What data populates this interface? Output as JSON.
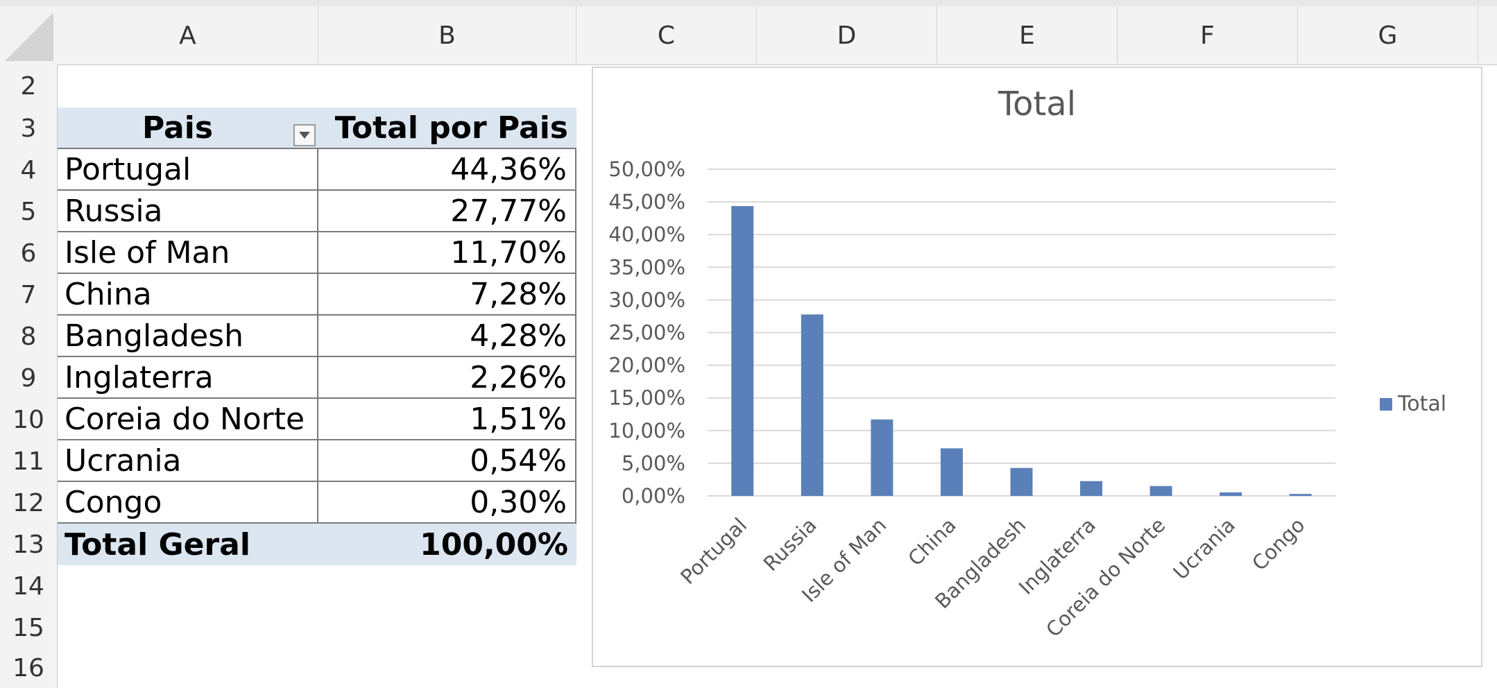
{
  "columns": [
    "A",
    "B",
    "C",
    "D",
    "E",
    "F",
    "G"
  ],
  "rows": [
    "2",
    "3",
    "4",
    "5",
    "6",
    "7",
    "8",
    "9",
    "10",
    "11",
    "12",
    "13",
    "14",
    "15",
    "16"
  ],
  "pivot": {
    "header_country": "Pais",
    "header_total": "Total por Pais",
    "items": [
      {
        "country": "Portugal",
        "total": "44,36%"
      },
      {
        "country": "Russia",
        "total": "27,77%"
      },
      {
        "country": "Isle of Man",
        "total": "11,70%"
      },
      {
        "country": "China",
        "total": "7,28%"
      },
      {
        "country": "Bangladesh",
        "total": "4,28%"
      },
      {
        "country": "Inglaterra",
        "total": "2,26%"
      },
      {
        "country": "Coreia do Norte",
        "total": "1,51%"
      },
      {
        "country": "Ucrania",
        "total": "0,54%"
      },
      {
        "country": "Congo",
        "total": "0,30%"
      }
    ],
    "grand_total_label": "Total Geral",
    "grand_total_value": "100,00%"
  },
  "chart_data": {
    "type": "bar",
    "title": "Total",
    "categories": [
      "Portugal",
      "Russia",
      "Isle of Man",
      "China",
      "Bangladesh",
      "Inglaterra",
      "Coreia do Norte",
      "Ucrania",
      "Congo"
    ],
    "series": [
      {
        "name": "Total",
        "values": [
          44.36,
          27.77,
          11.7,
          7.28,
          4.28,
          2.26,
          1.51,
          0.54,
          0.3
        ]
      }
    ],
    "yticks": [
      "0,00%",
      "5,00%",
      "10,00%",
      "15,00%",
      "20,00%",
      "25,00%",
      "30,00%",
      "35,00%",
      "40,00%",
      "45,00%",
      "50,00%"
    ],
    "ylim": [
      0,
      50
    ],
    "grid": true,
    "legend": "right",
    "colors": {
      "bar": "#5b80b9",
      "grid": "#d9d9d9",
      "text": "#595959"
    }
  }
}
